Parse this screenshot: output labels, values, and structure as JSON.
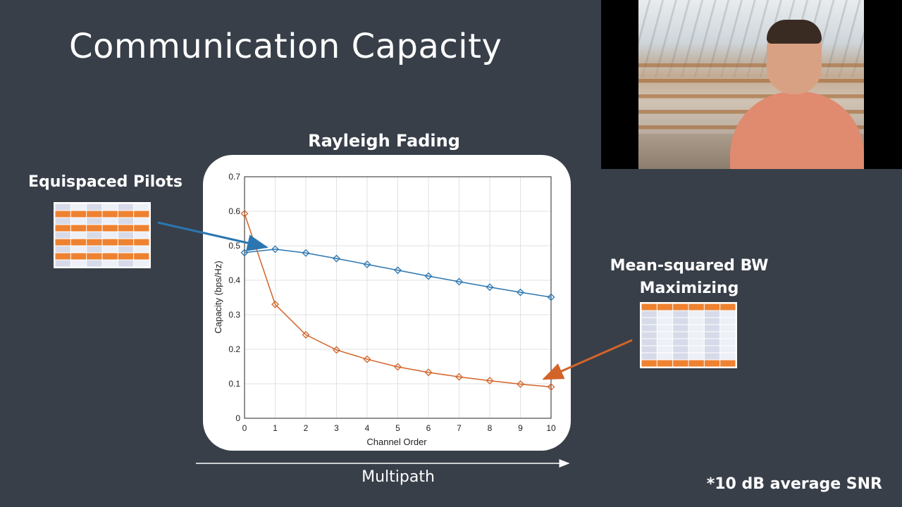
{
  "slide": {
    "title": "Communication Capacity",
    "chart_heading": "Rayleigh Fading",
    "pilot_label": "Equispaced Pilots",
    "msbw_label_line1": "Mean-squared BW",
    "msbw_label_line2": "Maximizing",
    "multipath_label": "Multipath",
    "snr_note": "*10 dB average SNR"
  },
  "video": {
    "icon": "webcam-person"
  },
  "colors": {
    "background": "#383f49",
    "series_blue": "#2b76b0",
    "series_orange": "#d2642a",
    "grid_orange": "#ee8231",
    "grid_light": "#d7dbe9"
  },
  "equispaced_grid": {
    "rows": [
      "light",
      "orange",
      "light",
      "orange",
      "light",
      "orange",
      "light",
      "orange",
      "light"
    ],
    "columns": 6
  },
  "msbw_grid": {
    "rows": [
      "orange",
      "light",
      "light",
      "light",
      "light",
      "light",
      "light",
      "light",
      "orange"
    ],
    "columns": 6
  },
  "chart_data": {
    "type": "line",
    "title": "",
    "xlabel": "Channel Order",
    "ylabel": "Capacity (bps/Hz)",
    "x": [
      0,
      1,
      2,
      3,
      4,
      5,
      6,
      7,
      8,
      9,
      10
    ],
    "xlim": [
      0,
      10
    ],
    "ylim": [
      0,
      0.7
    ],
    "yticks": [
      0,
      0.1,
      0.2,
      0.3,
      0.4,
      0.5,
      0.6,
      0.7
    ],
    "yticklabels": [
      "0",
      "0.1",
      "0.2",
      "0.3",
      "0.4",
      "0.5",
      "0.6",
      "0.7"
    ],
    "grid": true,
    "marker": "diamond",
    "series": [
      {
        "color": "#2b76b0",
        "values": [
          0.48,
          0.49,
          0.479,
          0.463,
          0.446,
          0.429,
          0.412,
          0.396,
          0.38,
          0.365,
          0.351
        ]
      },
      {
        "color": "#d2642a",
        "values": [
          0.593,
          0.33,
          0.242,
          0.198,
          0.171,
          0.149,
          0.133,
          0.12,
          0.109,
          0.099,
          0.091
        ]
      }
    ]
  }
}
